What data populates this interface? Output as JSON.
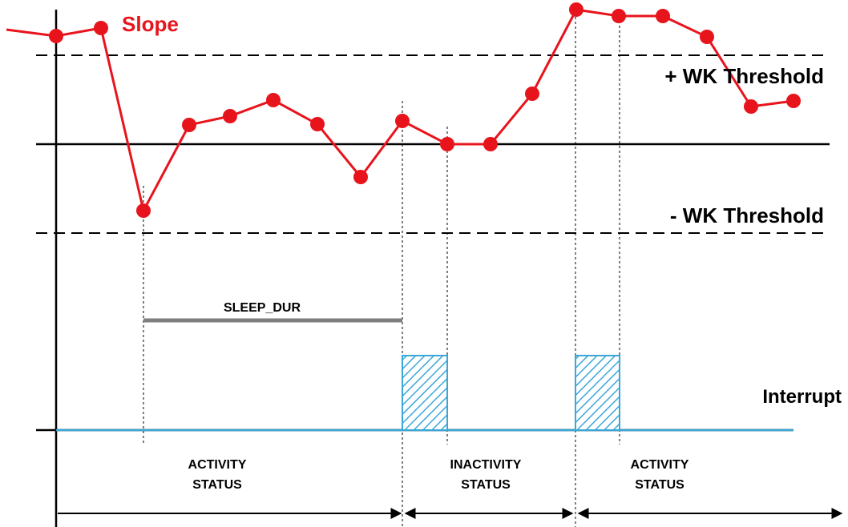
{
  "labels": {
    "slope": "Slope",
    "pos_threshold": "+ WK Threshold",
    "neg_threshold": "- WK Threshold",
    "sleep_dur": "SLEEP_DUR",
    "interrupt": "Interrupt",
    "status_1_line1": "ACTIVITY",
    "status_1_line2": "STATUS",
    "status_2_line1": "INACTIVITY",
    "status_2_line2": "STATUS",
    "status_3_line1": "ACTIVITY",
    "status_3_line2": "STATUS"
  },
  "colors": {
    "slope": "#e8141c",
    "interrupt": "#3ba7d8",
    "axis": "#000000",
    "sleep_dur": "#7f7f7f"
  }
}
